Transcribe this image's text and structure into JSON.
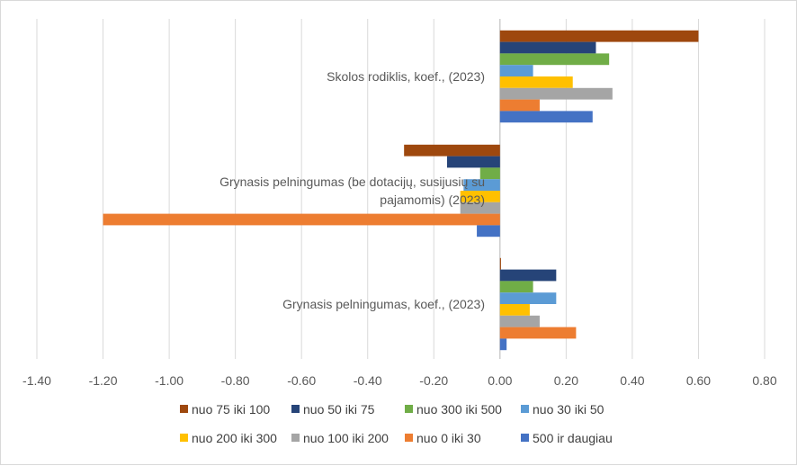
{
  "chart_data": {
    "type": "bar",
    "orientation": "horizontal",
    "title": "",
    "xlabel": "",
    "ylabel": "",
    "xlim": [
      -1.4,
      0.8
    ],
    "x_ticks": [
      "-1.40",
      "-1.20",
      "-1.00",
      "-0.80",
      "-0.60",
      "-0.40",
      "-0.20",
      "0.00",
      "0.20",
      "0.40",
      "0.60",
      "0.80"
    ],
    "grid": "vertical",
    "legend_position": "bottom",
    "categories": [
      {
        "label_lines": [
          "Skolos rodiklis, koef., (2023)"
        ]
      },
      {
        "label_lines": [
          "Grynasis pelningumas (be dotacijų, susijusių su",
          "pajamomis) (2023)"
        ]
      },
      {
        "label_lines": [
          "Grynasis pelningumas, koef., (2023)"
        ]
      }
    ],
    "series": [
      {
        "name": "nuo 75 iki 100",
        "color": "#9e480e",
        "values": [
          0.6,
          -0.29,
          0.003
        ]
      },
      {
        "name": "nuo 50 iki 75",
        "color": "#264478",
        "values": [
          0.29,
          -0.16,
          0.17
        ]
      },
      {
        "name": "nuo 300 iki 500",
        "color": "#70ad47",
        "values": [
          0.33,
          -0.06,
          0.1
        ]
      },
      {
        "name": "nuo 30 iki 50",
        "color": "#5b9bd5",
        "values": [
          0.1,
          -0.11,
          0.17
        ]
      },
      {
        "name": "nuo 200 iki 300",
        "color": "#ffc000",
        "values": [
          0.22,
          -0.12,
          0.09
        ]
      },
      {
        "name": "nuo 100 iki 200",
        "color": "#a5a5a5",
        "values": [
          0.34,
          -0.12,
          0.12
        ]
      },
      {
        "name": "nuo 0 iki 30",
        "color": "#ed7d31",
        "values": [
          0.12,
          -1.2,
          0.23
        ]
      },
      {
        "name": "500 ir daugiau",
        "color": "#4472c4",
        "values": [
          0.28,
          -0.07,
          0.02
        ]
      }
    ]
  }
}
